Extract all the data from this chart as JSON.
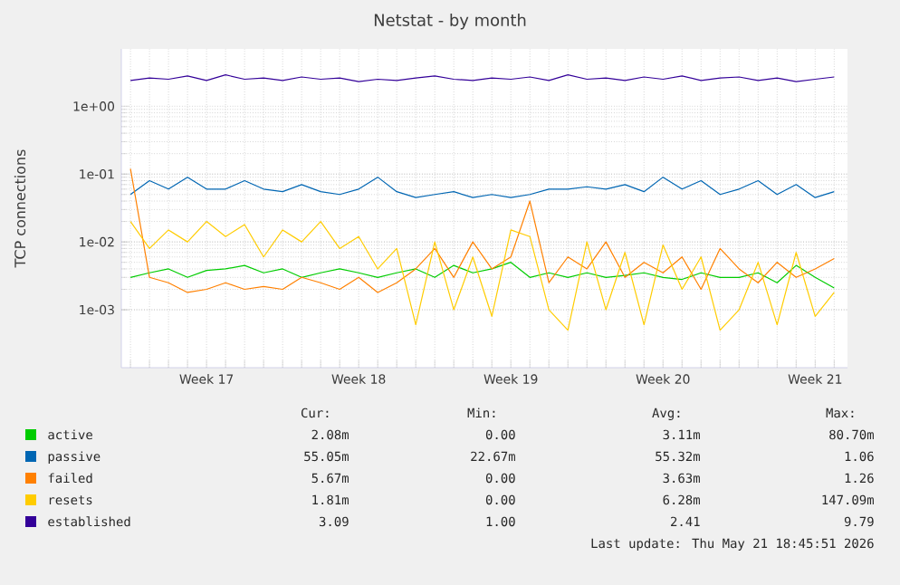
{
  "chart_data": {
    "type": "line",
    "title": "Netstat - by month",
    "ylabel": "TCP connections",
    "log": "y",
    "grid": true,
    "legend": "bottom",
    "ylim": [
      0.00014,
      7
    ],
    "yticks": [
      {
        "value": 0.001,
        "label": "1e-03"
      },
      {
        "value": 0.01,
        "label": "1e-02"
      },
      {
        "value": 0.1,
        "label": "1e-01"
      },
      {
        "value": 1,
        "label": "1e+00"
      }
    ],
    "categories": [
      null,
      null,
      null,
      null,
      "Week 17",
      null,
      null,
      null,
      null,
      null,
      null,
      null,
      "Week 18",
      null,
      null,
      null,
      null,
      null,
      null,
      null,
      "Week 19",
      null,
      null,
      null,
      null,
      null,
      null,
      null,
      "Week 20",
      null,
      null,
      null,
      null,
      null,
      null,
      null,
      "Week 21",
      null
    ],
    "series": [
      {
        "name": "active",
        "color": "#00cc00",
        "values": [
          0.003,
          0.0035,
          0.004,
          0.003,
          0.0038,
          0.004,
          0.0045,
          0.0035,
          0.004,
          0.003,
          0.0035,
          0.004,
          0.0035,
          0.003,
          0.0035,
          0.004,
          0.003,
          0.0045,
          0.0035,
          0.004,
          0.005,
          0.003,
          0.0035,
          0.003,
          0.0035,
          0.003,
          0.0032,
          0.0035,
          0.003,
          0.0028,
          0.0035,
          0.003,
          0.003,
          0.0035,
          0.0025,
          0.0045,
          0.003,
          0.0021
        ]
      },
      {
        "name": "passive",
        "color": "#0066b3",
        "values": [
          0.05,
          0.08,
          0.06,
          0.09,
          0.06,
          0.06,
          0.08,
          0.06,
          0.055,
          0.07,
          0.055,
          0.05,
          0.06,
          0.09,
          0.055,
          0.045,
          0.05,
          0.055,
          0.045,
          0.05,
          0.045,
          0.05,
          0.06,
          0.06,
          0.065,
          0.06,
          0.07,
          0.055,
          0.09,
          0.06,
          0.08,
          0.05,
          0.06,
          0.08,
          0.05,
          0.07,
          0.045,
          0.055
        ]
      },
      {
        "name": "failed",
        "color": "#ff8000",
        "values": [
          0.12,
          0.003,
          0.0025,
          0.0018,
          0.002,
          0.0025,
          0.002,
          0.0022,
          0.002,
          0.003,
          0.0025,
          0.002,
          0.003,
          0.0018,
          0.0025,
          0.004,
          0.008,
          0.003,
          0.01,
          0.004,
          0.006,
          0.04,
          0.0025,
          0.006,
          0.004,
          0.01,
          0.003,
          0.005,
          0.0035,
          0.006,
          0.002,
          0.008,
          0.004,
          0.0025,
          0.005,
          0.003,
          0.004,
          0.0057
        ]
      },
      {
        "name": "resets",
        "color": "#ffcc00",
        "values": [
          0.02,
          0.008,
          0.015,
          0.01,
          0.02,
          0.012,
          0.018,
          0.006,
          0.015,
          0.01,
          0.02,
          0.008,
          0.012,
          0.004,
          0.008,
          0.0006,
          0.01,
          0.001,
          0.006,
          0.0008,
          0.015,
          0.012,
          0.001,
          0.0005,
          0.01,
          0.001,
          0.007,
          0.0006,
          0.009,
          0.002,
          0.006,
          0.0005,
          0.001,
          0.005,
          0.0006,
          0.007,
          0.0008,
          0.0018
        ]
      },
      {
        "name": "established",
        "color": "#330099",
        "values": [
          2.4,
          2.6,
          2.5,
          2.8,
          2.4,
          2.9,
          2.5,
          2.6,
          2.4,
          2.7,
          2.5,
          2.6,
          2.3,
          2.5,
          2.4,
          2.6,
          2.8,
          2.5,
          2.4,
          2.6,
          2.5,
          2.7,
          2.4,
          2.9,
          2.5,
          2.6,
          2.4,
          2.7,
          2.5,
          2.8,
          2.4,
          2.6,
          2.7,
          2.4,
          2.6,
          2.3,
          2.5,
          2.7
        ]
      }
    ],
    "annotations": [
      "Cur:",
      "Min:",
      "Avg:",
      "Max:",
      "2.08m",
      "0.00",
      "3.11m",
      "80.70m",
      "55.05m",
      "22.67m",
      "55.32m",
      "1.06",
      "5.67m",
      "0.00",
      "3.63m",
      "1.26",
      "1.81m",
      "0.00",
      "6.28m",
      "147.09m",
      "3.09",
      "1.00",
      "2.41",
      "9.79",
      "Last update: Thu May 21 18:45:51 2026"
    ]
  }
}
